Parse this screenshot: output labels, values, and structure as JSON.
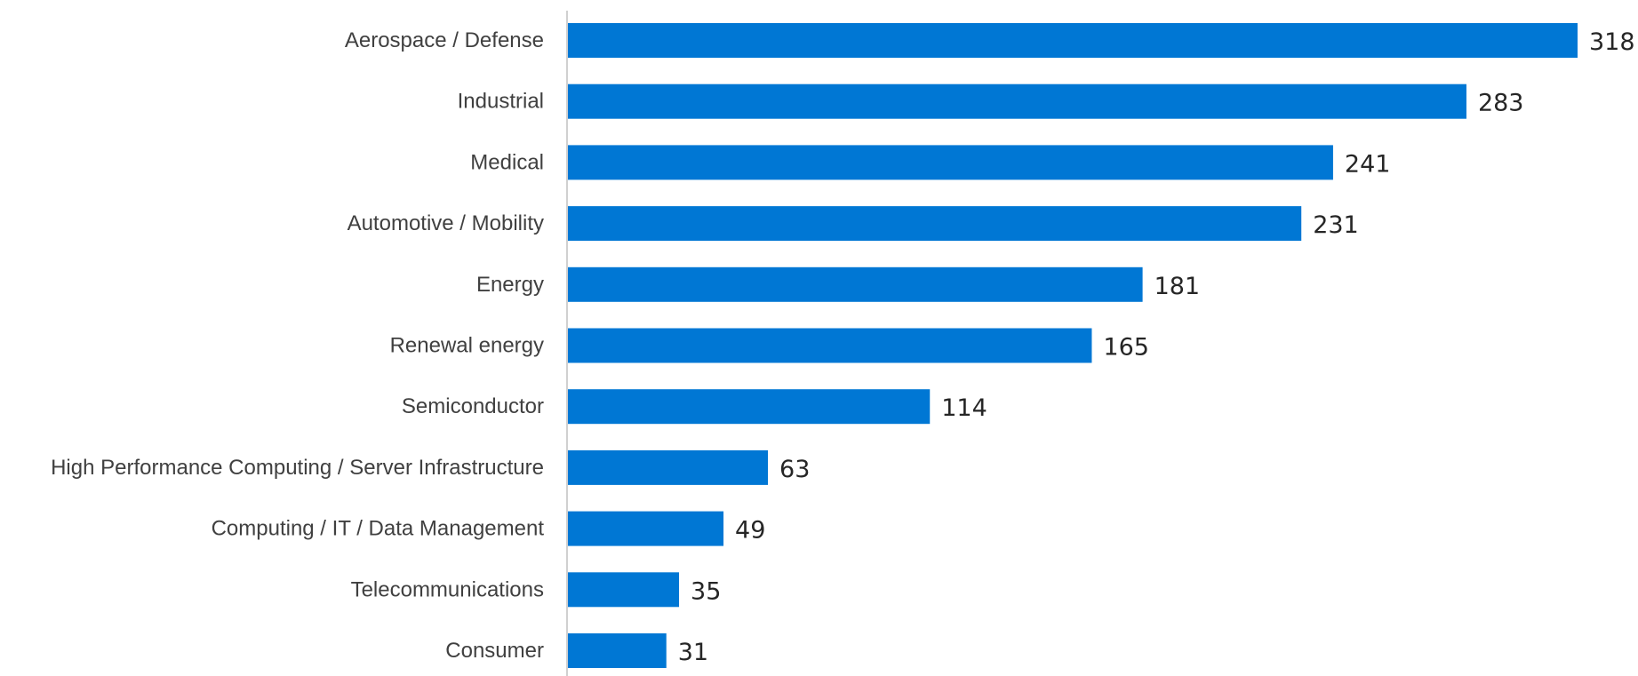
{
  "chart_data": {
    "type": "bar",
    "orientation": "horizontal",
    "categories": [
      "Aerospace / Defense",
      "Industrial",
      "Medical",
      "Automotive / Mobility",
      "Energy",
      "Renewal energy",
      "Semiconductor",
      "High Performance Computing / Server Infrastructure",
      "Computing / IT / Data Management",
      "Telecommunications",
      "Consumer"
    ],
    "values": [
      318,
      283,
      241,
      231,
      181,
      165,
      114,
      63,
      49,
      35,
      31
    ],
    "xlim": [
      0,
      318
    ],
    "title": "",
    "xlabel": "",
    "ylabel": "",
    "grid": false,
    "legend": "none",
    "data_labels": true,
    "bar_color": "#0077D4",
    "label_color": "#404040",
    "value_color": "#262626",
    "axis_color": "#D0D0D0"
  }
}
